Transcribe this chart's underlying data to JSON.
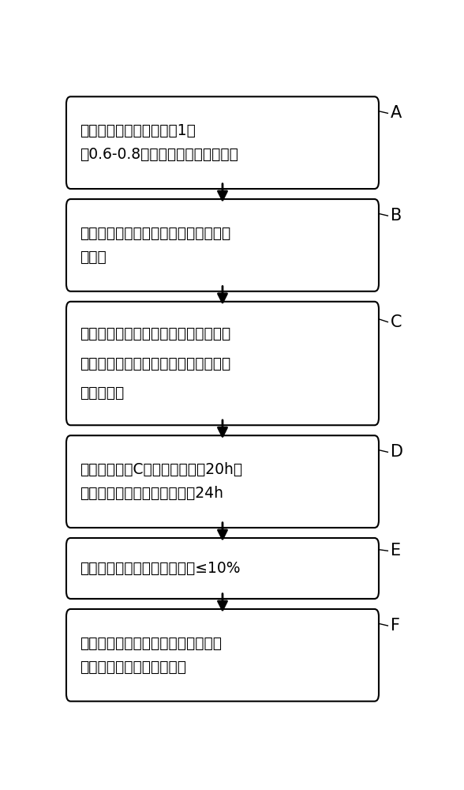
{
  "boxes": [
    {
      "label": "A",
      "lines": [
        "润水：豆粕与水以重量比1：",
        "（0.6-0.8）投料后，进行物料预热"
      ]
    },
    {
      "label": "B",
      "lines": [
        "连续蒸煮：对预热物料进行蒸煮，得到",
        "熟豆粕"
      ]
    },
    {
      "label": "C",
      "lines": [
        "接曲种：将米曲霉曲精与小麦粉混合，",
        "接种至冷却后的熟豆粕中，搅拌均匀，",
        "得到混合料"
      ]
    },
    {
      "label": "D",
      "lines": [
        "发酵：将步骤C中的混合料发酵20h后",
        "接种酿酒酵母菌种，继续发酵24h"
      ]
    },
    {
      "label": "E",
      "lines": [
        "低温热风干燥：控制曲料水分≤10%"
      ]
    },
    {
      "label": "F",
      "lines": [
        "出曲、粉碎：曲料出曲后经过粉碎，",
        "制得圆盘固态好氧发酵豆粕"
      ]
    }
  ],
  "bg_color": "#ffffff",
  "box_facecolor": "#ffffff",
  "box_edgecolor": "#000000",
  "text_color": "#000000",
  "arrow_color": "#000000",
  "label_color": "#000000",
  "font_size": 13.5,
  "label_font_size": 15
}
